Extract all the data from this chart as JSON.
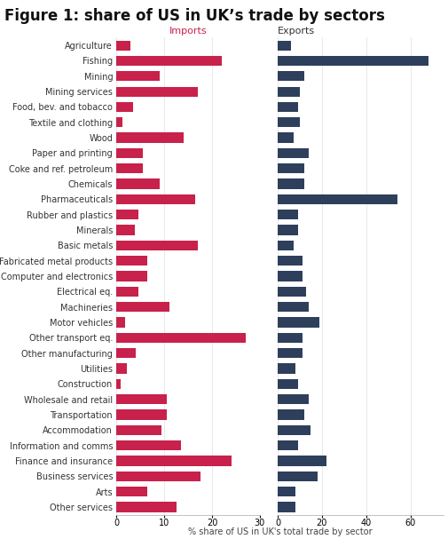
{
  "title": "Figure 1: share of US in UK’s trade by sectors",
  "title_fontsize": 12,
  "imports_label": "Imports",
  "exports_label": "Exports",
  "imports_color": "#C8214B",
  "exports_color": "#2E3F5C",
  "background_color": "#FFFFFF",
  "categories": [
    "Agriculture",
    "Fishing",
    "Mining",
    "Mining services",
    "Food, bev. and tobacco",
    "Textile and clothing",
    "Wood",
    "Paper and printing",
    "Coke and ref. petroleum",
    "Chemicals",
    "Pharmaceuticals",
    "Rubber and plastics",
    "Minerals",
    "Basic metals",
    "Fabricated metal products",
    "Computer and electronics",
    "Electrical eq.",
    "Machineries",
    "Motor vehicles",
    "Other transport eq.",
    "Other manufacturing",
    "Utilities",
    "Construction",
    "Wholesale and retail",
    "Transportation",
    "Accommodation",
    "Information and comms",
    "Finance and insurance",
    "Business services",
    "Arts",
    "Other services"
  ],
  "imports": [
    3.0,
    22.0,
    9.0,
    17.0,
    3.5,
    1.2,
    14.0,
    5.5,
    5.5,
    9.0,
    16.5,
    4.5,
    3.8,
    17.0,
    6.5,
    6.5,
    4.5,
    11.0,
    1.8,
    27.0,
    4.0,
    2.2,
    0.8,
    10.5,
    10.5,
    9.5,
    13.5,
    24.0,
    17.5,
    6.5,
    12.5
  ],
  "exports": [
    6.0,
    68.0,
    12.0,
    10.0,
    9.0,
    10.0,
    7.0,
    14.0,
    12.0,
    12.0,
    54.0,
    9.0,
    9.0,
    7.0,
    11.0,
    11.0,
    13.0,
    14.0,
    19.0,
    11.0,
    11.0,
    8.0,
    9.0,
    14.0,
    12.0,
    15.0,
    9.0,
    22.0,
    18.0,
    8.0,
    8.0
  ],
  "xlim_imports": [
    0,
    30
  ],
  "xlim_exports": [
    0,
    75
  ],
  "xticks_imports": [
    0,
    10,
    20,
    30
  ],
  "xticks_exports": [
    0,
    20,
    40,
    60
  ],
  "grid_color": "#E8E8E8",
  "label_fontsize": 7.0,
  "tick_fontsize": 7.0,
  "header_fontsize": 8.0,
  "axis_label_fontsize": 7.0,
  "bar_height": 0.65
}
